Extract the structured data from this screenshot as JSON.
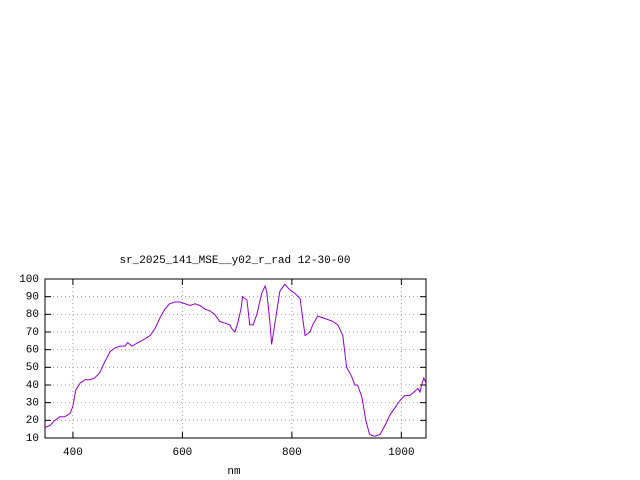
{
  "chart_data": {
    "type": "line",
    "title": "sr_2025_141_MSE__y02_r_rad 12-30-00",
    "x_label": "nm",
    "x": [
      349,
      358,
      367,
      376,
      385,
      395,
      400,
      405,
      413,
      422,
      431,
      440,
      449,
      458,
      468,
      477,
      486,
      495,
      500,
      508,
      519,
      531,
      541,
      550,
      559,
      568,
      577,
      586,
      595,
      605,
      614,
      623,
      632,
      641,
      650,
      659,
      668,
      678,
      687,
      690,
      696,
      701,
      707,
      710,
      718,
      723,
      729,
      736,
      745,
      751,
      754,
      760,
      763,
      769,
      778,
      787,
      796,
      805,
      815,
      824,
      833,
      838,
      847,
      857,
      866,
      875,
      884,
      893,
      900,
      909,
      915,
      920,
      928,
      935,
      942,
      951,
      961,
      970,
      979,
      988,
      997,
      1006,
      1015,
      1023,
      1030,
      1034,
      1037,
      1041,
      1045
    ],
    "series": [
      {
        "name": "sr_2025_141_MSE__y02_r_rad",
        "color": "#9400d3",
        "values": [
          16,
          17,
          20,
          22,
          22,
          24,
          28,
          37,
          41,
          43,
          43,
          44,
          47,
          53,
          59,
          61,
          62,
          62,
          64,
          62,
          64,
          66,
          68,
          72,
          78,
          83,
          86,
          87,
          87,
          86,
          85,
          86,
          85,
          83,
          82,
          80,
          76,
          75,
          74,
          72,
          70,
          75,
          83,
          90,
          88,
          74,
          74,
          80,
          92,
          96,
          93,
          75,
          63,
          75,
          93,
          97,
          94,
          92,
          89,
          68,
          70,
          74,
          79,
          78,
          77,
          76,
          74,
          68,
          50,
          45,
          40,
          40,
          33,
          20,
          12,
          11,
          12,
          17,
          23,
          27,
          31,
          34,
          34,
          36,
          38,
          36,
          40,
          44,
          41
        ]
      }
    ],
    "xlim": [
      349,
      1045
    ],
    "ylim": [
      10,
      100
    ],
    "xticks": [
      400,
      600,
      800,
      1000
    ],
    "yticks": [
      10,
      20,
      30,
      40,
      50,
      60,
      70,
      80,
      90,
      100
    ],
    "grid": true
  }
}
